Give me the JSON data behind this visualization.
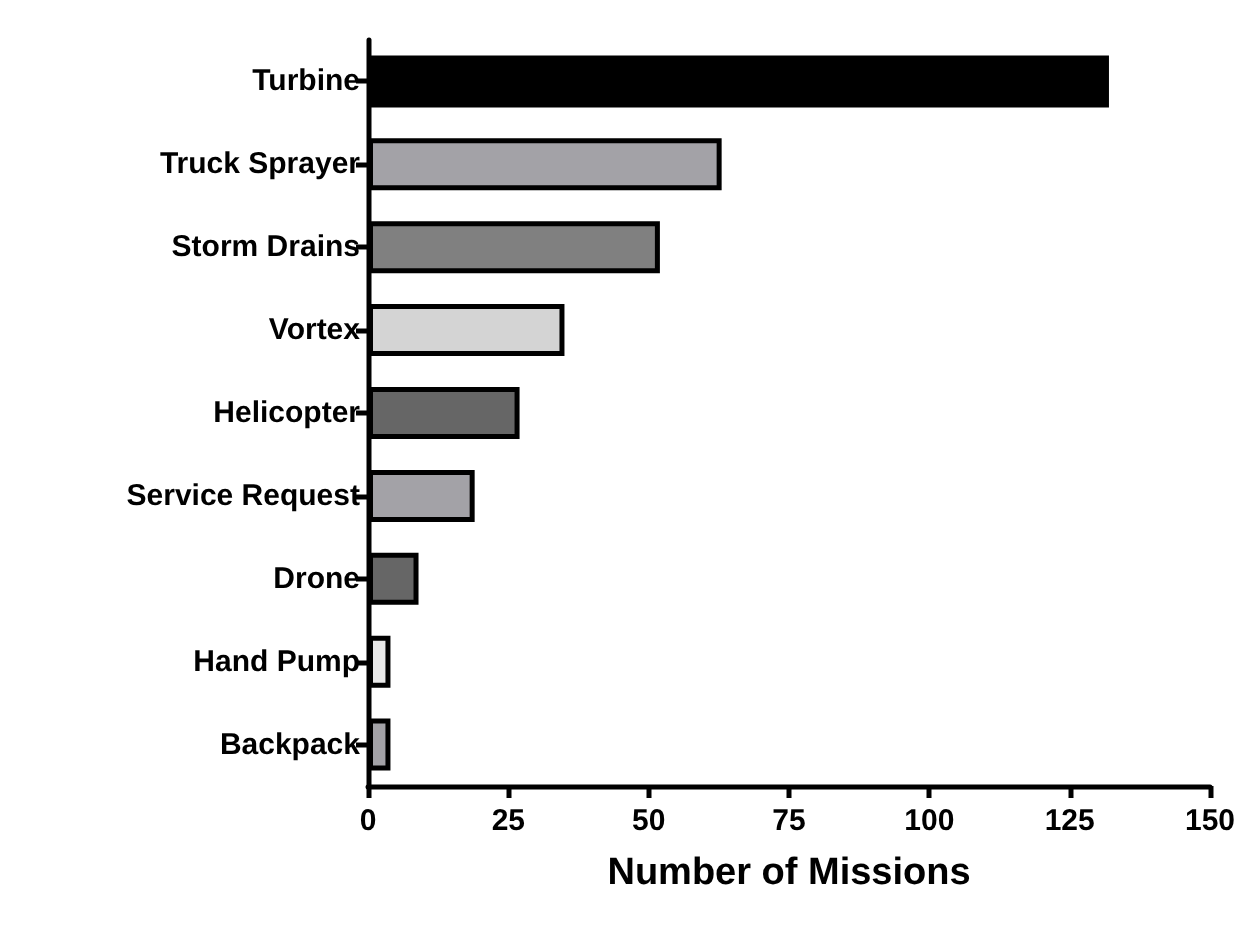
{
  "chart_data": {
    "type": "bar",
    "orientation": "horizontal",
    "xlabel": "Number of Missions",
    "categories": [
      "Turbine",
      "Truck Sprayer",
      "Storm Drains",
      "Vortex",
      "Helicopter",
      "Service Request",
      "Drone",
      "Hand Pump",
      "Backpack"
    ],
    "values": [
      132,
      63,
      52,
      35,
      27,
      19,
      9,
      4,
      4
    ],
    "colors": [
      "#000000",
      "#a3a2a7",
      "#808080",
      "#d4d4d4",
      "#666666",
      "#a3a2a7",
      "#666666",
      "#e8e8e8",
      "#a3a2a7"
    ],
    "xlim": [
      0,
      150
    ],
    "xticks": [
      0,
      25,
      50,
      75,
      100,
      125,
      150
    ],
    "grid": false
  }
}
